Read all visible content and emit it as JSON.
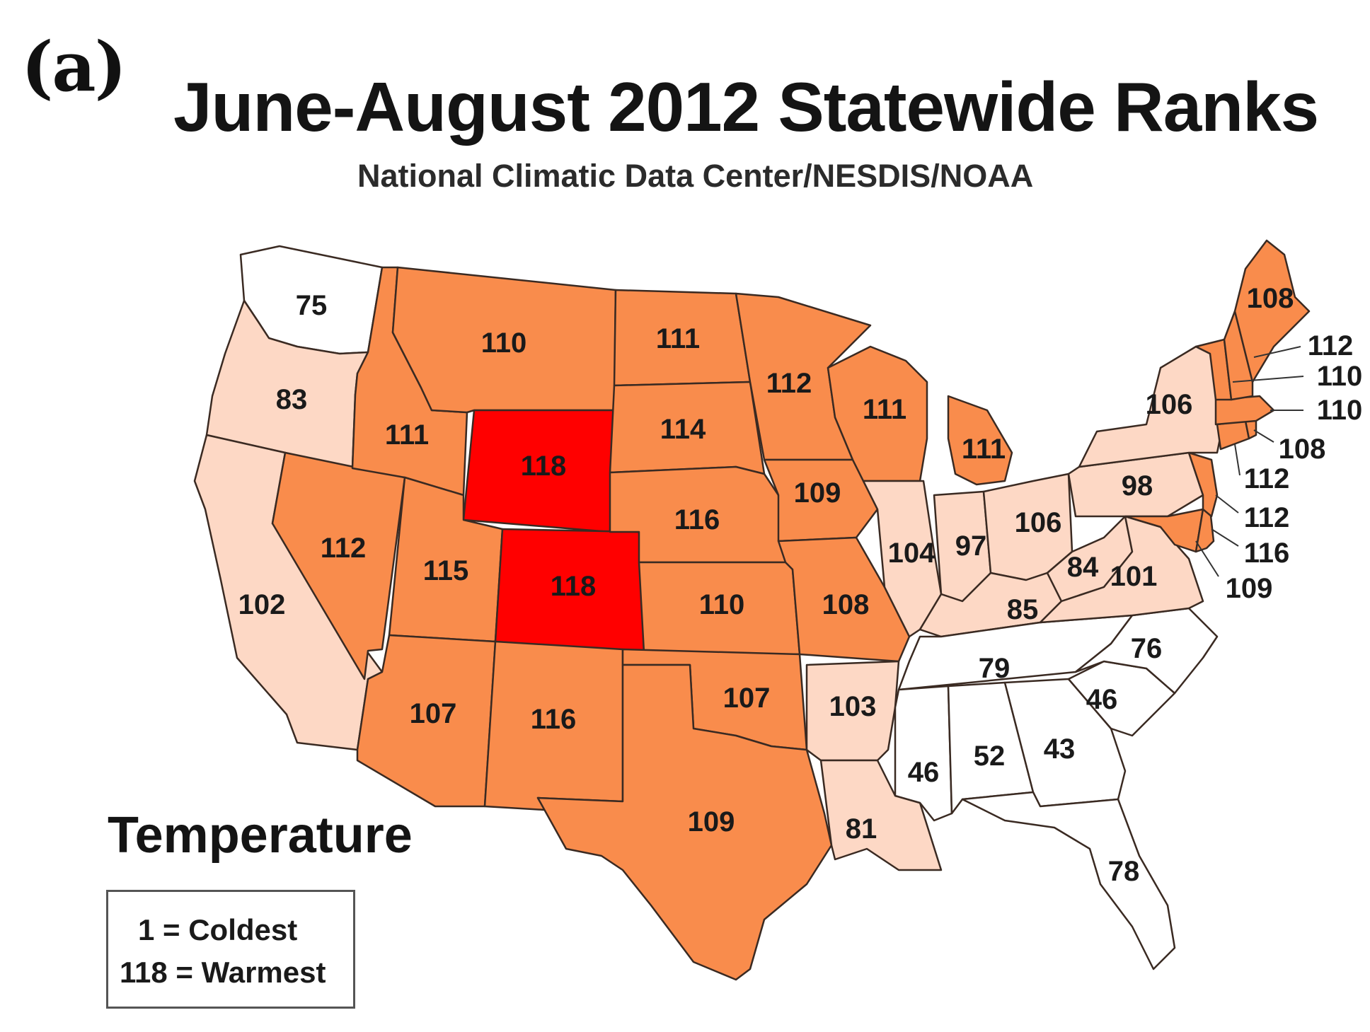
{
  "panel_label": "(a)",
  "title": "June-August 2012 Statewide Ranks",
  "subtitle": "National Climatic Data Center/NESDIS/NOAA",
  "legend": {
    "title": "Temperature",
    "line1": "1 = Coldest",
    "line2": "118 = Warmest"
  },
  "colors": {
    "top_rank": "#ff0000",
    "much_above": "#f98c4c",
    "above": "#fdd8c5",
    "near_normal": "#ffffff",
    "border": "#3a2a22"
  },
  "states": {
    "WA": {
      "rank": "75",
      "category": "near_normal"
    },
    "OR": {
      "rank": "83",
      "category": "above"
    },
    "CA": {
      "rank": "102",
      "category": "above"
    },
    "ID": {
      "rank": "111",
      "category": "much_above"
    },
    "NV": {
      "rank": "112",
      "category": "much_above"
    },
    "MT": {
      "rank": "110",
      "category": "much_above"
    },
    "WY": {
      "rank": "118",
      "category": "top_rank"
    },
    "UT": {
      "rank": "115",
      "category": "much_above"
    },
    "CO": {
      "rank": "118",
      "category": "top_rank"
    },
    "AZ": {
      "rank": "107",
      "category": "much_above"
    },
    "NM": {
      "rank": "116",
      "category": "much_above"
    },
    "ND": {
      "rank": "111",
      "category": "much_above"
    },
    "SD": {
      "rank": "114",
      "category": "much_above"
    },
    "NE": {
      "rank": "116",
      "category": "much_above"
    },
    "KS": {
      "rank": "110",
      "category": "much_above"
    },
    "OK": {
      "rank": "107",
      "category": "much_above"
    },
    "TX": {
      "rank": "109",
      "category": "much_above"
    },
    "MN": {
      "rank": "112",
      "category": "much_above"
    },
    "IA": {
      "rank": "109",
      "category": "much_above"
    },
    "MO": {
      "rank": "108",
      "category": "much_above"
    },
    "AR": {
      "rank": "103",
      "category": "above"
    },
    "LA": {
      "rank": "81",
      "category": "above"
    },
    "WI": {
      "rank": "111",
      "category": "much_above"
    },
    "IL": {
      "rank": "104",
      "category": "above"
    },
    "MI": {
      "rank": "111",
      "category": "much_above"
    },
    "IN": {
      "rank": "97",
      "category": "above"
    },
    "OH": {
      "rank": "106",
      "category": "above"
    },
    "KY": {
      "rank": "85",
      "category": "above"
    },
    "TN": {
      "rank": "79",
      "category": "near_normal"
    },
    "MS": {
      "rank": "46",
      "category": "near_normal"
    },
    "AL": {
      "rank": "52",
      "category": "near_normal"
    },
    "GA": {
      "rank": "43",
      "category": "near_normal"
    },
    "FL": {
      "rank": "78",
      "category": "near_normal"
    },
    "SC": {
      "rank": "46",
      "category": "near_normal"
    },
    "NC": {
      "rank": "76",
      "category": "near_normal"
    },
    "VA": {
      "rank": "101",
      "category": "above"
    },
    "WV": {
      "rank": "84",
      "category": "above"
    },
    "PA": {
      "rank": "98",
      "category": "above"
    },
    "NY": {
      "rank": "106",
      "category": "above"
    },
    "ME": {
      "rank": "108",
      "category": "much_above"
    },
    "NH": {
      "rank": "112",
      "category": "much_above"
    },
    "VT": {
      "rank": "110",
      "category": "much_above"
    },
    "MA": {
      "rank": "110",
      "category": "much_above"
    },
    "RI": {
      "rank": "108",
      "category": "much_above"
    },
    "CT": {
      "rank": "112",
      "category": "much_above"
    },
    "NJ": {
      "rank": "112",
      "category": "much_above"
    },
    "DE": {
      "rank": "116",
      "category": "much_above"
    },
    "MD": {
      "rank": "109",
      "category": "much_above"
    }
  }
}
